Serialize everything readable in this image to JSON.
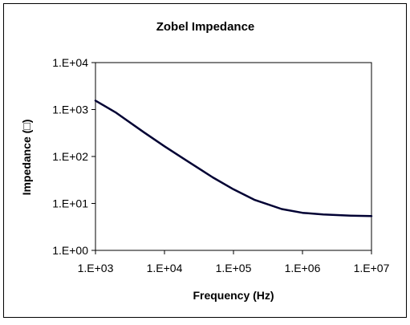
{
  "chart_data": {
    "type": "line",
    "title": "Zobel Impedance",
    "xlabel": "Frequency (Hz)",
    "ylabel": "Impedance (□)",
    "x_scale": "log",
    "y_scale": "log",
    "xlim": [
      1000,
      10000000
    ],
    "ylim": [
      1,
      10000
    ],
    "x_ticks": [
      1000,
      10000,
      100000,
      1000000,
      10000000
    ],
    "x_tick_labels": [
      "1.E+03",
      "1.E+04",
      "1.E+05",
      "1.E+06",
      "1.E+07"
    ],
    "y_ticks": [
      1,
      10,
      100,
      1000,
      10000
    ],
    "y_tick_labels": [
      "1.E+00",
      "1.E+01",
      "1.E+02",
      "1.E+03",
      "1.E+04"
    ],
    "grid": false,
    "legend": "none",
    "series": [
      {
        "color": "#000033",
        "x": [
          1000,
          2000,
          5000,
          10000,
          20000,
          50000,
          100000,
          200000,
          500000,
          1000000,
          2000000,
          5000000,
          10000000
        ],
        "y": [
          1550,
          850,
          330,
          165,
          85,
          36,
          20,
          12,
          7.6,
          6.3,
          5.8,
          5.5,
          5.4
        ]
      }
    ]
  }
}
